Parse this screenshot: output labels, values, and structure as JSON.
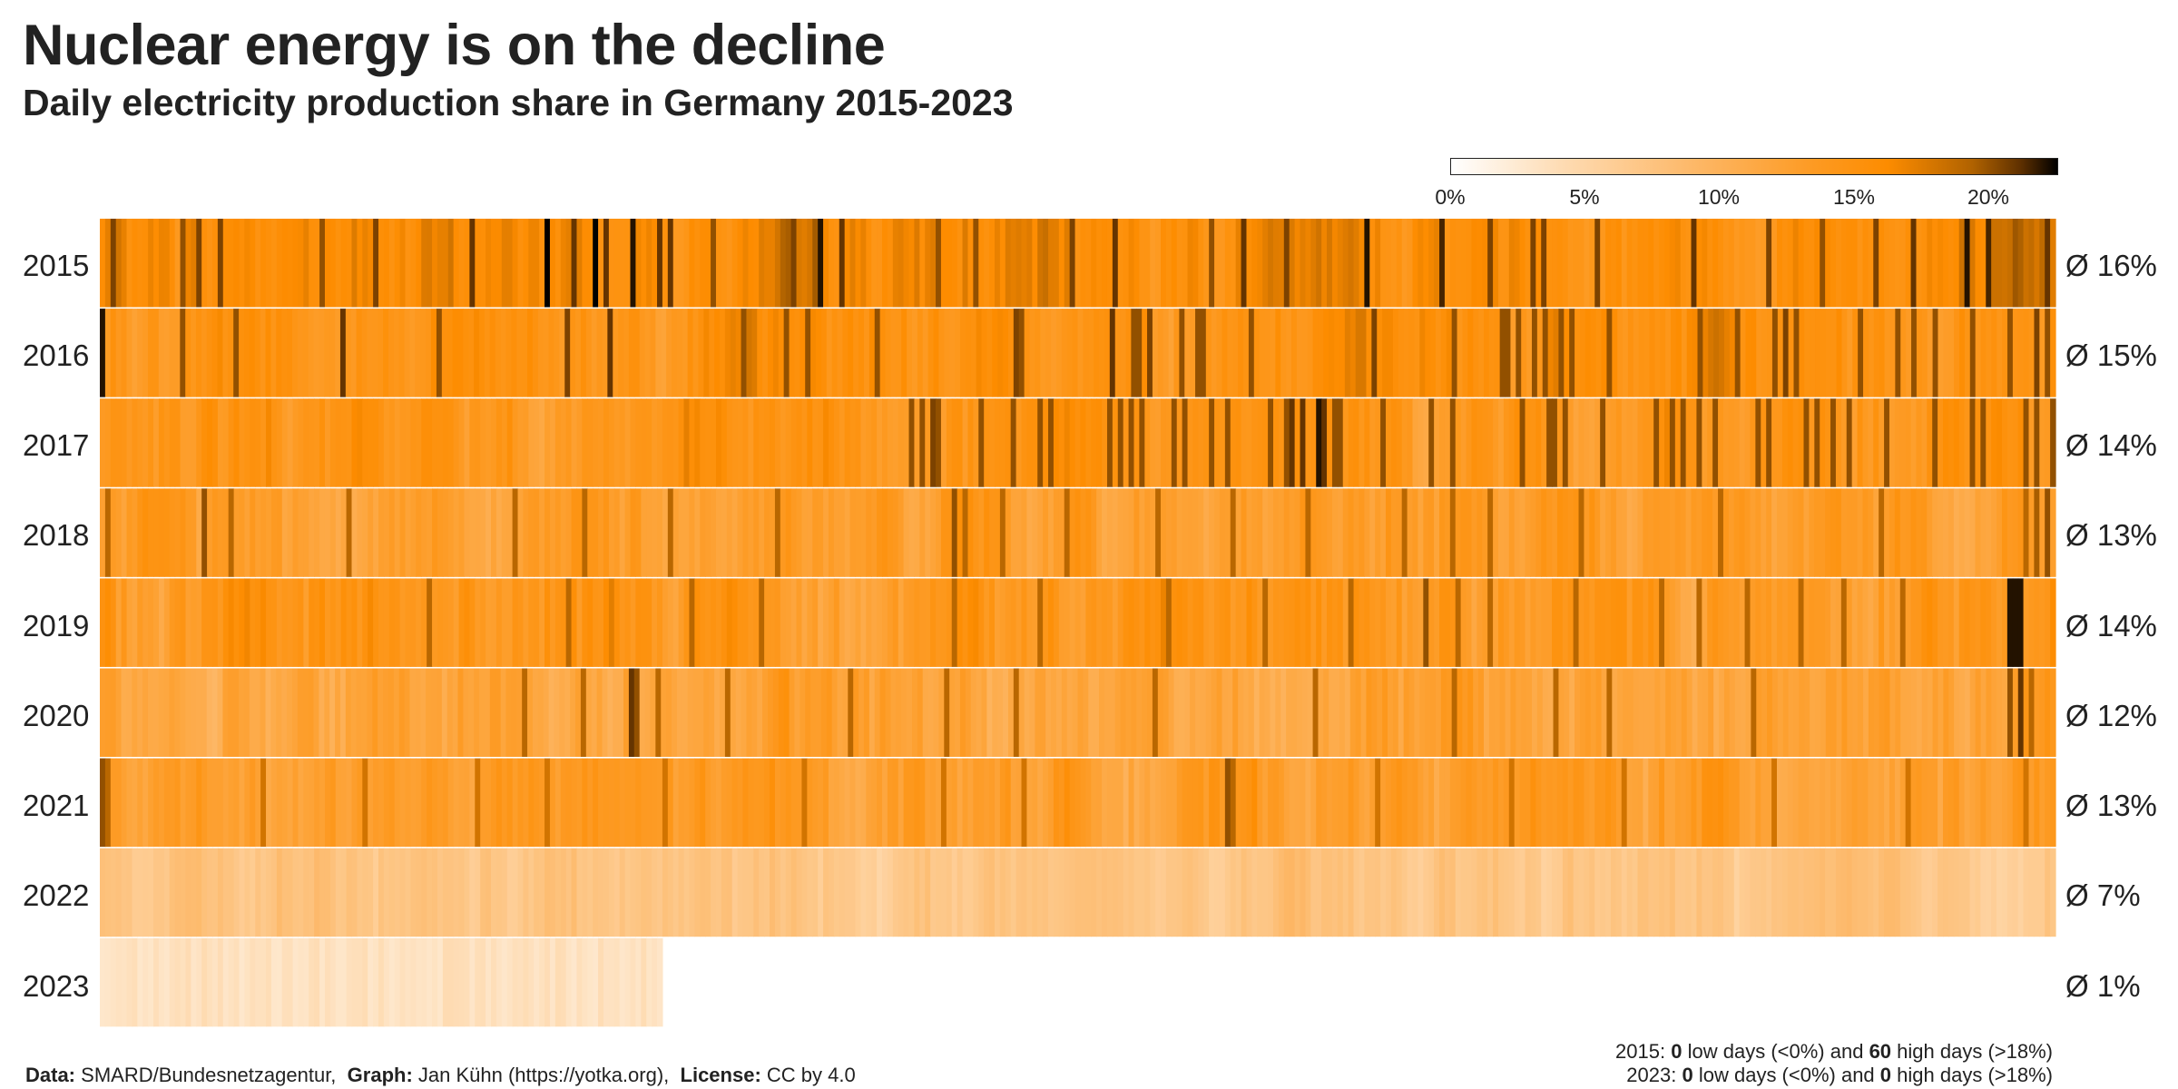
{
  "title": "Nuclear energy is on the decline",
  "subtitle": "Daily electricity production share in Germany 2015-2023",
  "footer": {
    "data_label": "Data:",
    "data_value": "SMARD/Bundesnetzagentur,",
    "graph_label": "Graph:",
    "graph_value": "Jan Kühn (https://yotka.org),",
    "license_label": "License:",
    "license_value": "CC by 4.0"
  },
  "notes": [
    {
      "year": "2015:",
      "low": "0",
      "low_text": "low days (<0%) and",
      "high": "60",
      "high_text": "high days (>18%)"
    },
    {
      "year": "2023:",
      "low": "0",
      "low_text": "low days (<0%) and",
      "high": "0",
      "high_text": "high days (>18%)"
    }
  ],
  "colors": {
    "scale": [
      "#ffffff",
      "#fedcb4",
      "#fdb868",
      "#fd9a22",
      "#fd8c00",
      "#b06200",
      "#5e3000",
      "#000000"
    ],
    "text": "#222222",
    "background": "#ffffff"
  },
  "chart_data": {
    "type": "heatmap",
    "x_description": "day of year",
    "color_range": [
      0,
      22.5
    ],
    "legend_ticks": [
      "0%",
      "5%",
      "10%",
      "15%",
      "20%"
    ],
    "legend_tick_values": [
      0,
      5,
      10,
      15,
      20
    ],
    "legend_placement": "top-right",
    "rows": [
      {
        "year": "2015",
        "days": 365,
        "avg": 16,
        "avg_label": "Ø 16%",
        "noise": 2.3,
        "spikes": [
          [
            5,
            20.5
          ],
          [
            39,
            20
          ],
          [
            46,
            20.5
          ],
          [
            57,
            20.5
          ],
          [
            105,
            20
          ],
          [
            129,
            20.5
          ],
          [
            174,
            21
          ],
          [
            211,
            23
          ],
          [
            222,
            21
          ],
          [
            233,
            23
          ],
          [
            238,
            21
          ],
          [
            250,
            22
          ],
          [
            263,
            21
          ],
          [
            270,
            21
          ],
          [
            289,
            20
          ],
          [
            326,
            20.5
          ],
          [
            341,
            22
          ],
          [
            351,
            21
          ],
          [
            396,
            20
          ],
          [
            414,
            20
          ],
          [
            459,
            20.5
          ],
          [
            479,
            21
          ],
          [
            525,
            20
          ],
          [
            539,
            21
          ],
          [
            561,
            20.5
          ],
          [
            598,
            22
          ],
          [
            633,
            21.5
          ],
          [
            656,
            20.5
          ],
          [
            677,
            20.5
          ],
          [
            683,
            20.5
          ],
          [
            707,
            20.5
          ],
          [
            753,
            21
          ],
          [
            789,
            20.5
          ],
          [
            815,
            20
          ],
          [
            840,
            20.5
          ],
          [
            857,
            21
          ],
          [
            882,
            22
          ],
          [
            893,
            21.5
          ],
          [
            920,
            21
          ]
        ]
      },
      {
        "year": "2016",
        "days": 366,
        "avg": 15,
        "avg_label": "Ø 15%",
        "noise": 2.2,
        "spikes": [
          [
            1,
            22
          ],
          [
            38,
            20
          ],
          [
            64,
            20
          ],
          [
            114,
            21
          ],
          [
            160,
            20
          ],
          [
            221,
            20.5
          ],
          [
            240,
            21
          ],
          [
            303,
            20
          ],
          [
            323,
            20
          ],
          [
            335,
            20
          ],
          [
            366,
            20
          ],
          [
            432,
            20.5
          ],
          [
            436,
            20
          ],
          [
            477,
            21
          ],
          [
            489,
            20
          ],
          [
            491,
            20
          ],
          [
            496,
            20.5
          ],
          [
            512,
            20
          ],
          [
            519,
            20
          ],
          [
            522,
            20
          ],
          [
            544,
            20
          ],
          [
            602,
            20.5
          ],
          [
            641,
            20
          ],
          [
            662,
            20
          ],
          [
            665,
            20
          ],
          [
            670,
            20
          ],
          [
            678,
            20
          ],
          [
            684,
            20
          ],
          [
            690,
            20
          ],
          [
            696,
            20
          ],
          [
            712,
            20
          ],
          [
            757,
            20
          ],
          [
            775,
            20
          ],
          [
            791,
            20
          ],
          [
            796,
            20.5
          ],
          [
            802,
            20
          ],
          [
            831,
            20
          ],
          [
            849,
            20
          ],
          [
            857,
            20
          ],
          [
            867,
            20
          ],
          [
            886,
            20
          ],
          [
            903,
            20
          ],
          [
            916,
            20.5
          ],
          [
            920,
            20
          ]
        ]
      },
      {
        "year": "2017",
        "days": 365,
        "avg": 14,
        "avg_label": "Ø 14%",
        "noise": 2.2,
        "spikes": [
          [
            384,
            20
          ],
          [
            387,
            20
          ],
          [
            392,
            20.5
          ],
          [
            396,
            20
          ],
          [
            415,
            20
          ],
          [
            432,
            20
          ],
          [
            443,
            20
          ],
          [
            448,
            20
          ],
          [
            476,
            20
          ],
          [
            481,
            20
          ],
          [
            486,
            20
          ],
          [
            491,
            20
          ],
          [
            506,
            20
          ],
          [
            513,
            20
          ],
          [
            526,
            20
          ],
          [
            533,
            20
          ],
          [
            553,
            20
          ],
          [
            560,
            20
          ],
          [
            562,
            22
          ],
          [
            564,
            21
          ],
          [
            568,
            21
          ],
          [
            575,
            22
          ],
          [
            578,
            21
          ],
          [
            583,
            20
          ],
          [
            586,
            20
          ],
          [
            605,
            20
          ],
          [
            630,
            20
          ],
          [
            638,
            20
          ],
          [
            672,
            20
          ],
          [
            685,
            20
          ],
          [
            688,
            20
          ],
          [
            693,
            20
          ],
          [
            709,
            20
          ],
          [
            735,
            20
          ],
          [
            743,
            20
          ],
          [
            748,
            20
          ],
          [
            755,
            20
          ],
          [
            764,
            20
          ],
          [
            783,
            20
          ],
          [
            788,
            20
          ],
          [
            806,
            20
          ],
          [
            812,
            20
          ],
          [
            820,
            20
          ],
          [
            827,
            20
          ],
          [
            845,
            20
          ],
          [
            866,
            20
          ],
          [
            886,
            20
          ],
          [
            889,
            20
          ],
          [
            911,
            20
          ],
          [
            916,
            20
          ],
          [
            922,
            20
          ]
        ]
      },
      {
        "year": "2018",
        "days": 365,
        "avg": 13,
        "avg_label": "Ø 13%",
        "noise": 2.2,
        "spikes": [
          [
            2,
            19
          ],
          [
            49,
            20
          ],
          [
            60,
            19
          ],
          [
            117,
            19
          ],
          [
            194,
            19
          ],
          [
            228,
            19
          ],
          [
            268,
            19
          ],
          [
            320,
            19
          ],
          [
            403,
            20
          ],
          [
            408,
            19
          ],
          [
            425,
            19
          ],
          [
            456,
            19
          ],
          [
            500,
            19
          ],
          [
            536,
            19
          ],
          [
            570,
            19
          ],
          [
            616,
            19
          ],
          [
            640,
            19
          ],
          [
            658,
            19
          ],
          [
            700,
            19
          ],
          [
            766,
            19
          ],
          [
            843,
            19
          ],
          [
            911,
            19
          ],
          [
            916,
            19.5
          ],
          [
            920,
            20
          ]
        ]
      },
      {
        "year": "2019",
        "days": 365,
        "avg": 14,
        "avg_label": "Ø 14%",
        "noise": 2.4,
        "spikes": [
          [
            155,
            19
          ],
          [
            220,
            19
          ],
          [
            278,
            19
          ],
          [
            313,
            19
          ],
          [
            402,
            19
          ],
          [
            444,
            19
          ],
          [
            505,
            19
          ],
          [
            551,
            19
          ],
          [
            592,
            19
          ],
          [
            627,
            20
          ],
          [
            641,
            19
          ],
          [
            656,
            19
          ],
          [
            698,
            19
          ],
          [
            738,
            19
          ],
          [
            756,
            19
          ],
          [
            779,
            19
          ],
          [
            805,
            19
          ],
          [
            823,
            19
          ],
          [
            851,
            19
          ],
          [
            903,
            22
          ],
          [
            905,
            22
          ],
          [
            907,
            23
          ],
          [
            909,
            22
          ]
        ]
      },
      {
        "year": "2020",
        "days": 366,
        "avg": 12,
        "avg_label": "Ø 12%",
        "noise": 2.3,
        "spikes": [
          [
            200,
            19
          ],
          [
            228,
            19
          ],
          [
            251,
            21
          ],
          [
            253,
            20
          ],
          [
            264,
            19
          ],
          [
            295,
            19
          ],
          [
            355,
            19
          ],
          [
            400,
            19
          ],
          [
            433,
            19
          ],
          [
            497,
            19
          ],
          [
            574,
            19
          ],
          [
            640,
            19
          ],
          [
            688,
            19
          ],
          [
            714,
            19
          ],
          [
            781,
            19
          ],
          [
            903,
            20
          ],
          [
            909,
            21
          ],
          [
            913,
            19
          ]
        ]
      },
      {
        "year": "2021",
        "days": 365,
        "avg": 13,
        "avg_label": "Ø 13%",
        "noise": 2.1,
        "spikes": [
          [
            1,
            20
          ],
          [
            3,
            19
          ],
          [
            75,
            18
          ],
          [
            123,
            18
          ],
          [
            177,
            18
          ],
          [
            210,
            18
          ],
          [
            267,
            18
          ],
          [
            332,
            18
          ],
          [
            398,
            18
          ],
          [
            436,
            18
          ],
          [
            533,
            20
          ],
          [
            536,
            19
          ],
          [
            604,
            18
          ],
          [
            667,
            18
          ],
          [
            720,
            18
          ],
          [
            790,
            18
          ],
          [
            855,
            18
          ],
          [
            911,
            18
          ]
        ]
      },
      {
        "year": "2022",
        "days": 365,
        "avg": 7,
        "avg_label": "Ø 7%",
        "noise": 1.5,
        "spikes": []
      },
      {
        "year": "2023",
        "days": 105,
        "avg": 1,
        "avg_label": "Ø 1%",
        "noise": 1.0,
        "spikes": []
      }
    ]
  }
}
